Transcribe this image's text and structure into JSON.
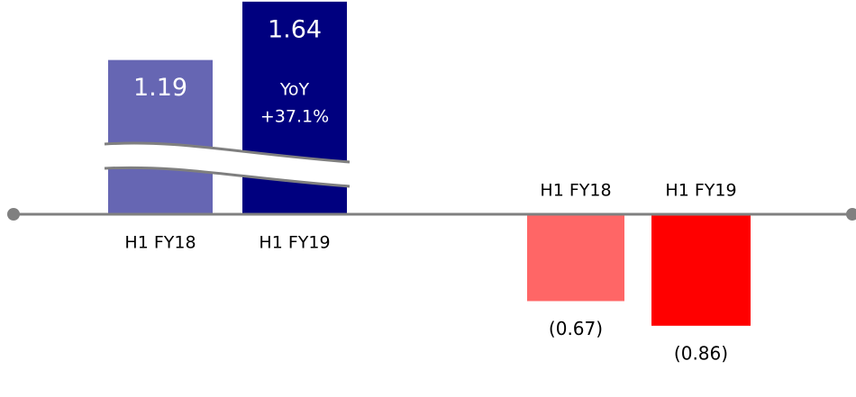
{
  "chart_data": {
    "type": "bar",
    "categories": [
      "H1 FY18",
      "H1 FY19",
      "H1 FY18",
      "H1 FY19"
    ],
    "values": [
      1.19,
      1.64,
      -0.67,
      -0.86
    ],
    "value_labels": [
      "1.19",
      "1.64",
      "(0.67)",
      "(0.86)"
    ],
    "colors": [
      "#6666b3",
      "#00007f",
      "#ff6666",
      "#ff0000"
    ],
    "annotations": [
      "YoY",
      "+37.1%"
    ]
  }
}
